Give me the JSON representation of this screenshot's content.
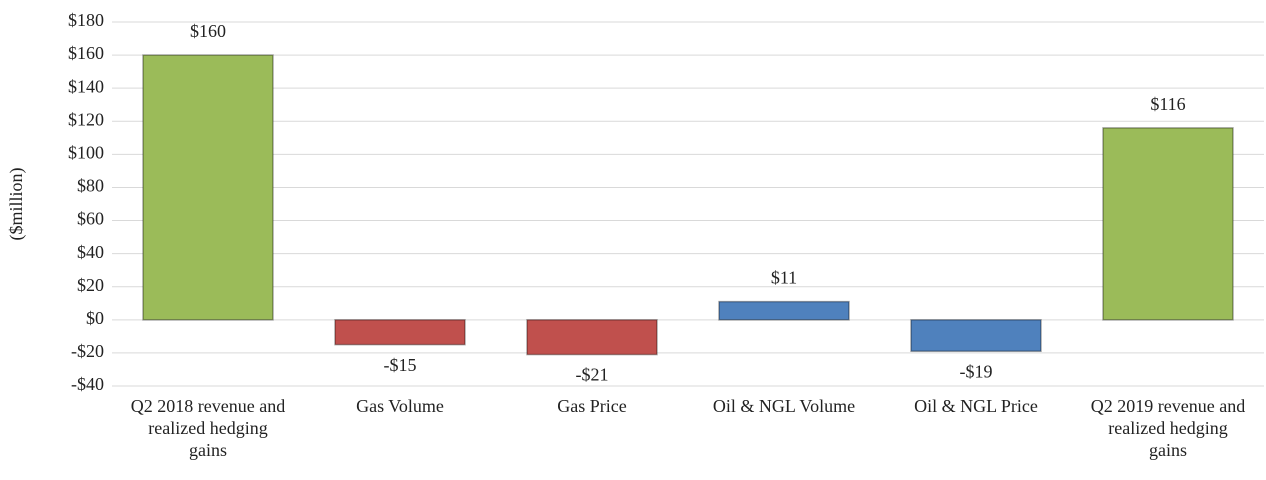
{
  "chart_data": {
    "type": "bar",
    "y_axis_label": "($million)",
    "categories": [
      "Q2 2018 revenue and realized hedging gains",
      "Gas Volume",
      "Gas Price",
      "Oil & NGL Volume",
      "Oil & NGL Price",
      "Q2 2019 revenue and realized hedging gains"
    ],
    "values": [
      160,
      -15,
      -21,
      11,
      -19,
      116
    ],
    "value_labels": [
      "$160",
      "-$15",
      "-$21",
      "$11",
      "-$19",
      "$116"
    ],
    "colors": [
      "#9bbb59",
      "#c0504d",
      "#c0504d",
      "#4f81bd",
      "#4f81bd",
      "#9bbb59"
    ],
    "ylim": [
      -40,
      180
    ],
    "yticks": [
      {
        "value": -40,
        "label": "-$40"
      },
      {
        "value": -20,
        "label": "-$20"
      },
      {
        "value": 0,
        "label": "$0"
      },
      {
        "value": 20,
        "label": "$20"
      },
      {
        "value": 40,
        "label": "$40"
      },
      {
        "value": 60,
        "label": "$60"
      },
      {
        "value": 80,
        "label": "$80"
      },
      {
        "value": 100,
        "label": "$100"
      },
      {
        "value": 120,
        "label": "$120"
      },
      {
        "value": 140,
        "label": "$140"
      },
      {
        "value": 160,
        "label": "$160"
      },
      {
        "value": 180,
        "label": "$180"
      }
    ],
    "grid": true
  }
}
